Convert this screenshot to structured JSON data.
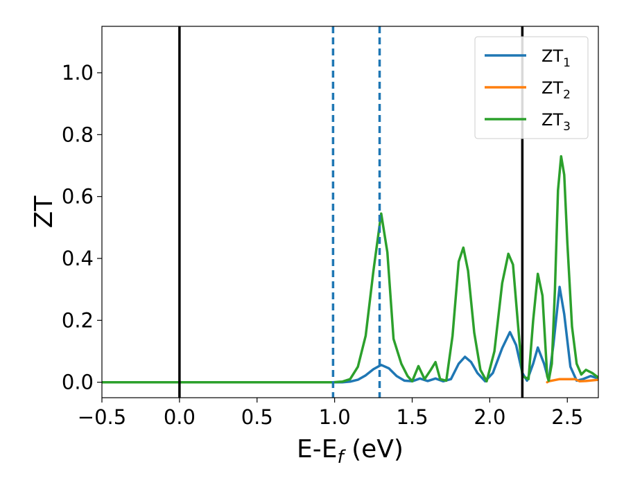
{
  "chart_data": {
    "type": "line",
    "xlabel": "E-E",
    "xlabel_sub": "f",
    "xlabel_unit": " (eV)",
    "ylabel": "ZT",
    "xlim": [
      -0.5,
      2.7
    ],
    "ylim": [
      -0.05,
      1.15
    ],
    "xticks": [
      -0.5,
      0.0,
      0.5,
      1.0,
      1.5,
      2.0,
      2.5
    ],
    "xtick_labels": [
      "−0.5",
      "0.0",
      "0.5",
      "1.0",
      "1.5",
      "2.0",
      "2.5"
    ],
    "yticks": [
      0.0,
      0.2,
      0.4,
      0.6,
      0.8,
      1.0
    ],
    "ytick_labels": [
      "0.0",
      "0.2",
      "0.4",
      "0.6",
      "0.8",
      "1.0"
    ],
    "grid": false,
    "legend_position": "top-right",
    "vlines": [
      {
        "x": 0.0,
        "style": "solid",
        "color": "#000000"
      },
      {
        "x": 2.21,
        "style": "solid",
        "color": "#000000"
      },
      {
        "x": 0.99,
        "style": "dashed",
        "color": "#1f77b4"
      },
      {
        "x": 1.29,
        "style": "dashed",
        "color": "#1f77b4"
      }
    ],
    "series": [
      {
        "name": "ZT",
        "subscript": "1",
        "color": "#1f77b4",
        "points": [
          [
            -0.5,
            0
          ],
          [
            0.99,
            0
          ],
          [
            1.05,
            0
          ],
          [
            1.1,
            0.002
          ],
          [
            1.15,
            0.008
          ],
          [
            1.2,
            0.022
          ],
          [
            1.25,
            0.042
          ],
          [
            1.3,
            0.056
          ],
          [
            1.35,
            0.045
          ],
          [
            1.4,
            0.02
          ],
          [
            1.45,
            0.005
          ],
          [
            1.5,
            0.003
          ],
          [
            1.55,
            0.012
          ],
          [
            1.6,
            0.004
          ],
          [
            1.65,
            0.012
          ],
          [
            1.7,
            0.003
          ],
          [
            1.75,
            0.01
          ],
          [
            1.8,
            0.06
          ],
          [
            1.84,
            0.082
          ],
          [
            1.88,
            0.065
          ],
          [
            1.92,
            0.03
          ],
          [
            1.97,
            0.003
          ],
          [
            2.02,
            0.03
          ],
          [
            2.08,
            0.11
          ],
          [
            2.13,
            0.162
          ],
          [
            2.17,
            0.12
          ],
          [
            2.21,
            0.03
          ],
          [
            2.24,
            0.005
          ],
          [
            2.28,
            0.06
          ],
          [
            2.31,
            0.112
          ],
          [
            2.35,
            0.06
          ],
          [
            2.38,
            0.005
          ],
          [
            2.41,
            0.12
          ],
          [
            2.45,
            0.308
          ],
          [
            2.48,
            0.22
          ],
          [
            2.52,
            0.05
          ],
          [
            2.56,
            0.005
          ],
          [
            2.6,
            0.01
          ],
          [
            2.65,
            0.02
          ],
          [
            2.7,
            0.012
          ]
        ]
      },
      {
        "name": "ZT",
        "subscript": "2",
        "color": "#ff7f0e",
        "points": [
          [
            2.37,
            0
          ],
          [
            2.38,
            0.003
          ],
          [
            2.45,
            0.01
          ],
          [
            2.55,
            0.01
          ],
          [
            2.58,
            0.003
          ],
          [
            2.62,
            0.004
          ],
          [
            2.66,
            0.006
          ],
          [
            2.7,
            0.008
          ]
        ]
      },
      {
        "name": "ZT",
        "subscript": "3",
        "color": "#2ca02c",
        "points": [
          [
            -0.5,
            0
          ],
          [
            0.99,
            0
          ],
          [
            1.05,
            0.002
          ],
          [
            1.1,
            0.01
          ],
          [
            1.15,
            0.05
          ],
          [
            1.2,
            0.15
          ],
          [
            1.25,
            0.36
          ],
          [
            1.3,
            0.545
          ],
          [
            1.34,
            0.42
          ],
          [
            1.38,
            0.14
          ],
          [
            1.43,
            0.06
          ],
          [
            1.47,
            0.02
          ],
          [
            1.5,
            0.003
          ],
          [
            1.54,
            0.052
          ],
          [
            1.58,
            0.01
          ],
          [
            1.62,
            0.04
          ],
          [
            1.65,
            0.065
          ],
          [
            1.68,
            0.01
          ],
          [
            1.72,
            0.005
          ],
          [
            1.76,
            0.15
          ],
          [
            1.8,
            0.39
          ],
          [
            1.83,
            0.435
          ],
          [
            1.86,
            0.36
          ],
          [
            1.9,
            0.16
          ],
          [
            1.94,
            0.04
          ],
          [
            1.98,
            0.003
          ],
          [
            2.03,
            0.1
          ],
          [
            2.08,
            0.32
          ],
          [
            2.12,
            0.415
          ],
          [
            2.15,
            0.38
          ],
          [
            2.18,
            0.2
          ],
          [
            2.21,
            0.02
          ],
          [
            2.25,
            0.01
          ],
          [
            2.28,
            0.2
          ],
          [
            2.31,
            0.35
          ],
          [
            2.34,
            0.28
          ],
          [
            2.37,
            0.02
          ],
          [
            2.38,
            0.005
          ],
          [
            2.4,
            0.06
          ],
          [
            2.42,
            0.3
          ],
          [
            2.44,
            0.62
          ],
          [
            2.46,
            0.73
          ],
          [
            2.48,
            0.67
          ],
          [
            2.5,
            0.45
          ],
          [
            2.53,
            0.18
          ],
          [
            2.56,
            0.06
          ],
          [
            2.59,
            0.025
          ],
          [
            2.62,
            0.04
          ],
          [
            2.66,
            0.03
          ],
          [
            2.7,
            0.015
          ]
        ]
      }
    ]
  }
}
